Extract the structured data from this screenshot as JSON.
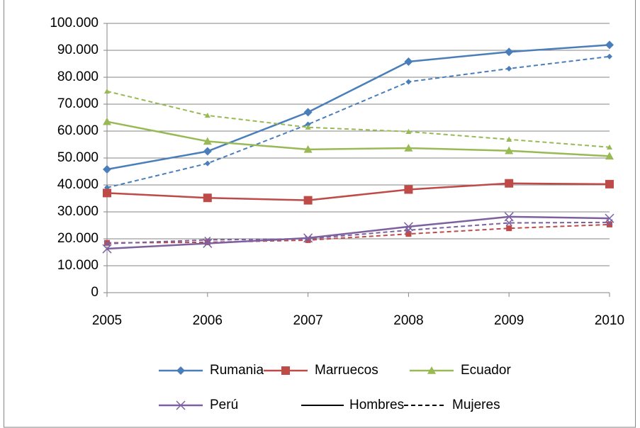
{
  "chart_data": {
    "type": "line",
    "categories": [
      "2005",
      "2006",
      "2007",
      "2008",
      "2009",
      "2010"
    ],
    "ylim": [
      0,
      100000
    ],
    "yticks": [
      0,
      {
        "value": 10000,
        "label": "10.000"
      },
      {
        "value": 20000,
        "label": "20.000"
      },
      {
        "value": 30000,
        "label": "30.000"
      },
      {
        "value": 40000,
        "label": "40.000"
      },
      {
        "value": 50000,
        "label": "50.000"
      },
      {
        "value": 60000,
        "label": "60.000"
      },
      {
        "value": 70000,
        "label": "70.000"
      },
      {
        "value": 80000,
        "label": "80.000"
      },
      {
        "value": 90000,
        "label": "90.000"
      },
      {
        "value": 100000,
        "label": "100.000"
      }
    ],
    "grid": true,
    "line_styles": [
      {
        "name": "Hombres",
        "dash": "solid"
      },
      {
        "name": "Mujeres",
        "dash": "dashed"
      }
    ],
    "series": [
      {
        "name": "Rumania",
        "color": "#4a7ebb",
        "marker": "diamond",
        "values": [
          45800,
          52500,
          67000,
          85800,
          89400,
          92000
        ],
        "mujeres": [
          39000,
          48000,
          62500,
          78300,
          83200,
          87700
        ]
      },
      {
        "name": "Marruecos",
        "color": "#be4b48",
        "marker": "square",
        "values": [
          37000,
          35200,
          34300,
          38300,
          40600,
          40300
        ],
        "mujeres": [
          18500,
          18700,
          19500,
          21800,
          23900,
          25300
        ]
      },
      {
        "name": "Ecuador",
        "color": "#98b954",
        "marker": "triangle",
        "values": [
          63500,
          56200,
          53200,
          53700,
          52700,
          50700
        ],
        "mujeres": [
          74800,
          65800,
          61400,
          59800,
          56900,
          54000
        ]
      },
      {
        "name": "Perú",
        "color": "#7d60a0",
        "marker": "x",
        "values": [
          16300,
          18300,
          20300,
          24500,
          28200,
          27600
        ],
        "mujeres": [
          18200,
          19600,
          20000,
          23200,
          25900,
          26100
        ]
      }
    ]
  }
}
